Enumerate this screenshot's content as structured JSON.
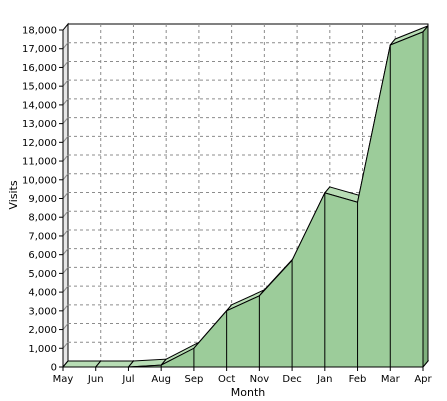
{
  "chart_data": {
    "type": "area",
    "title": "",
    "xlabel": "Month",
    "ylabel": "Visits",
    "categories": [
      "May",
      "Jun",
      "Jul",
      "Aug",
      "Sep",
      "Oct",
      "Nov",
      "Dec",
      "Jan",
      "Feb",
      "Mar",
      "Apr"
    ],
    "values": [
      0,
      0,
      0,
      100,
      1000,
      3000,
      3800,
      5700,
      9300,
      8800,
      17200,
      17900
    ],
    "ylim": [
      0,
      18000
    ],
    "yticks": [
      0,
      1000,
      2000,
      3000,
      4000,
      5000,
      6000,
      7000,
      8000,
      9000,
      10000,
      11000,
      12000,
      13000,
      14000,
      15000,
      16000,
      17000,
      18000
    ],
    "ytick_labels": [
      "0",
      "1,000",
      "2,000",
      "3,000",
      "4,000",
      "5,000",
      "6,000",
      "7,000",
      "8,000",
      "9,000",
      "10,000",
      "11,000",
      "12,000",
      "13,000",
      "14,000",
      "15,000",
      "16,000",
      "17,000",
      "18,000"
    ],
    "grid": true,
    "style": "3d",
    "colors": {
      "fill": "#9ccc9a",
      "top": "#b8ddb5",
      "outline": "#000000",
      "grid": "#8c8c8c",
      "wall": "#ffffff"
    }
  }
}
